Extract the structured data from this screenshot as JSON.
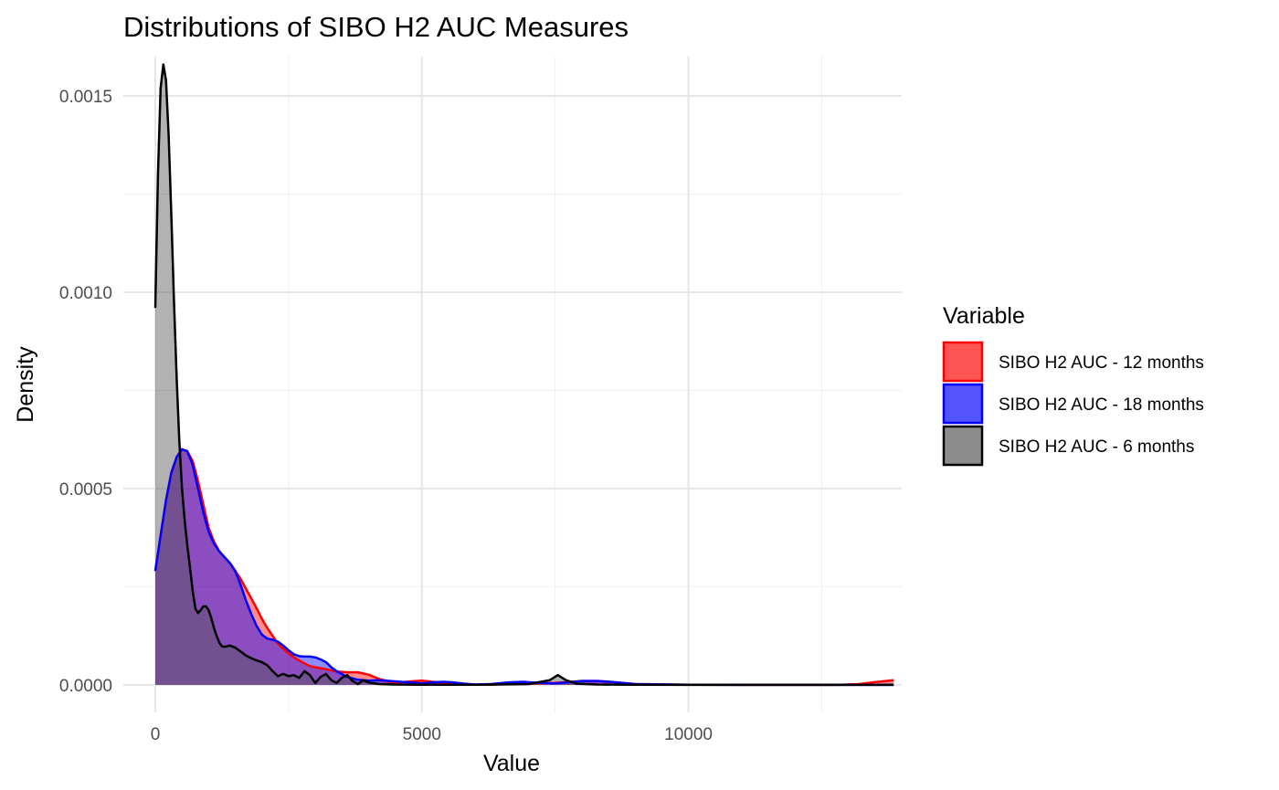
{
  "chart_data": {
    "type": "area",
    "subtype": "density",
    "title": "Distributions of SIBO H2 AUC Measures",
    "xlabel": "Value",
    "ylabel": "Density",
    "xlim": [
      -600,
      14000
    ],
    "ylim": [
      -7e-05,
      0.0016
    ],
    "xticks": [
      0,
      5000,
      10000
    ],
    "xtick_labels": [
      "0",
      "5000",
      "10000"
    ],
    "yticks": [
      0,
      0.0005,
      0.001,
      0.0015
    ],
    "ytick_labels": [
      "0.0000",
      "0.0005",
      "0.0010",
      "0.0015"
    ],
    "x_minor": [
      2500,
      7500,
      12500
    ],
    "y_minor": [
      0.00025,
      0.00075,
      0.00125
    ],
    "grid": true,
    "legend": {
      "title": "Variable",
      "placement": "right"
    },
    "series": [
      {
        "name": "SIBO H2 AUC - 12 months",
        "color": "#ff0000",
        "fill": "#ff0000",
        "points": [
          [
            0,
            0.00029
          ],
          [
            100,
            0.00038
          ],
          [
            200,
            0.00047
          ],
          [
            300,
            0.00054
          ],
          [
            400,
            0.00058
          ],
          [
            500,
            0.0006
          ],
          [
            600,
            0.000595
          ],
          [
            700,
            0.00057
          ],
          [
            800,
            0.00052
          ],
          [
            900,
            0.00046
          ],
          [
            1000,
            0.0004
          ],
          [
            1100,
            0.000365
          ],
          [
            1200,
            0.00034
          ],
          [
            1300,
            0.000325
          ],
          [
            1400,
            0.00031
          ],
          [
            1500,
            0.00029
          ],
          [
            1600,
            0.00027
          ],
          [
            1700,
            0.000245
          ],
          [
            1800,
            0.00022
          ],
          [
            1900,
            0.000195
          ],
          [
            2000,
            0.000168
          ],
          [
            2100,
            0.000145
          ],
          [
            2200,
            0.000125
          ],
          [
            2300,
            0.000105
          ],
          [
            2400,
            9.2e-05
          ],
          [
            2500,
            8e-05
          ],
          [
            2600,
            7e-05
          ],
          [
            2700,
            6.2e-05
          ],
          [
            2800,
            5.5e-05
          ],
          [
            2900,
            4.8e-05
          ],
          [
            3000,
            4.5e-05
          ],
          [
            3200,
            4e-05
          ],
          [
            3400,
            3.4e-05
          ],
          [
            3600,
            3.2e-05
          ],
          [
            3800,
            3.2e-05
          ],
          [
            4000,
            2.6e-05
          ],
          [
            4200,
            1.5e-05
          ],
          [
            4400,
            8e-06
          ],
          [
            4600,
            6e-06
          ],
          [
            4800,
            9e-06
          ],
          [
            5000,
            1.1e-05
          ],
          [
            5200,
            8e-06
          ],
          [
            5400,
            6e-06
          ],
          [
            5600,
            4e-06
          ],
          [
            5800,
            2e-06
          ],
          [
            6000,
            1e-06
          ],
          [
            6300,
            5e-07
          ],
          [
            6600,
            2e-06
          ],
          [
            6900,
            4e-06
          ],
          [
            7200,
            4e-06
          ],
          [
            7500,
            5e-06
          ],
          [
            7800,
            8e-06
          ],
          [
            8000,
            1e-05
          ],
          [
            8300,
            1e-05
          ],
          [
            8600,
            7e-06
          ],
          [
            9000,
            2e-06
          ],
          [
            10000,
            5e-07
          ],
          [
            11000,
            0
          ],
          [
            12000,
            0
          ],
          [
            12800,
            0
          ],
          [
            13200,
            2e-06
          ],
          [
            13500,
            7e-06
          ],
          [
            13850,
            1.2e-05
          ]
        ]
      },
      {
        "name": "SIBO H2 AUC - 18 months",
        "color": "#0000ff",
        "fill": "#0000ff",
        "points": [
          [
            0,
            0.00029
          ],
          [
            100,
            0.00038
          ],
          [
            200,
            0.00047
          ],
          [
            300,
            0.00054
          ],
          [
            400,
            0.00058
          ],
          [
            500,
            0.0006
          ],
          [
            600,
            0.000595
          ],
          [
            700,
            0.00056
          ],
          [
            800,
            0.0005
          ],
          [
            900,
            0.00044
          ],
          [
            1000,
            0.00039
          ],
          [
            1100,
            0.00036
          ],
          [
            1200,
            0.00034
          ],
          [
            1300,
            0.000325
          ],
          [
            1400,
            0.00031
          ],
          [
            1500,
            0.00029
          ],
          [
            1600,
            0.000255
          ],
          [
            1700,
            0.000215
          ],
          [
            1800,
            0.00018
          ],
          [
            1900,
            0.00015
          ],
          [
            2000,
            0.000128
          ],
          [
            2100,
            0.000118
          ],
          [
            2200,
            0.000115
          ],
          [
            2300,
            0.00011
          ],
          [
            2400,
            0.0001
          ],
          [
            2500,
            8.8e-05
          ],
          [
            2600,
            7.8e-05
          ],
          [
            2700,
            7.3e-05
          ],
          [
            2800,
            7.2e-05
          ],
          [
            2900,
            7.2e-05
          ],
          [
            3000,
            7e-05
          ],
          [
            3100,
            6.5e-05
          ],
          [
            3200,
            5.8e-05
          ],
          [
            3300,
            4.5e-05
          ],
          [
            3400,
            3.5e-05
          ],
          [
            3600,
            2e-05
          ],
          [
            3800,
            1.3e-05
          ],
          [
            4000,
            1.1e-05
          ],
          [
            4200,
            1.2e-05
          ],
          [
            4400,
            1e-05
          ],
          [
            4600,
            8e-06
          ],
          [
            4800,
            6e-06
          ],
          [
            5000,
            4e-06
          ],
          [
            5200,
            6e-06
          ],
          [
            5400,
            8e-06
          ],
          [
            5600,
            6e-06
          ],
          [
            5800,
            3e-06
          ],
          [
            6000,
            1e-06
          ],
          [
            6300,
            2e-06
          ],
          [
            6600,
            6e-06
          ],
          [
            6900,
            8e-06
          ],
          [
            7200,
            5e-06
          ],
          [
            7500,
            4e-06
          ],
          [
            7800,
            7e-06
          ],
          [
            8000,
            1e-05
          ],
          [
            8300,
            1e-05
          ],
          [
            8600,
            7e-06
          ],
          [
            9000,
            2e-06
          ],
          [
            10000,
            5e-07
          ],
          [
            11000,
            0
          ],
          [
            12000,
            0
          ],
          [
            13000,
            0
          ],
          [
            13850,
            0
          ]
        ]
      },
      {
        "name": "SIBO H2 AUC - 6 months",
        "color": "#000000",
        "fill": "#555555",
        "points": [
          [
            0,
            0.00096
          ],
          [
            50,
            0.0013
          ],
          [
            100,
            0.00152
          ],
          [
            150,
            0.00158
          ],
          [
            200,
            0.00154
          ],
          [
            250,
            0.0014
          ],
          [
            300,
            0.0012
          ],
          [
            350,
            0.00098
          ],
          [
            400,
            0.00078
          ],
          [
            450,
            0.00062
          ],
          [
            500,
            0.0005
          ],
          [
            550,
            0.00042
          ],
          [
            600,
            0.000355
          ],
          [
            650,
            0.0003
          ],
          [
            700,
            0.00024
          ],
          [
            750,
            0.000195
          ],
          [
            800,
            0.000183
          ],
          [
            850,
            0.00019
          ],
          [
            900,
            0.0002
          ],
          [
            950,
            0.0002
          ],
          [
            1000,
            0.00019
          ],
          [
            1050,
            0.00017
          ],
          [
            1100,
            0.000145
          ],
          [
            1150,
            0.000125
          ],
          [
            1200,
            0.000108
          ],
          [
            1250,
            9.8e-05
          ],
          [
            1300,
            9.7e-05
          ],
          [
            1400,
            0.0001
          ],
          [
            1500,
            9.5e-05
          ],
          [
            1600,
            8.5e-05
          ],
          [
            1700,
            7.5e-05
          ],
          [
            1800,
            6.8e-05
          ],
          [
            1900,
            6.2e-05
          ],
          [
            2000,
            5.8e-05
          ],
          [
            2100,
            5e-05
          ],
          [
            2200,
            3.5e-05
          ],
          [
            2300,
            2.2e-05
          ],
          [
            2400,
            2.8e-05
          ],
          [
            2500,
            2.2e-05
          ],
          [
            2600,
            2.5e-05
          ],
          [
            2700,
            1.8e-05
          ],
          [
            2800,
            3.5e-05
          ],
          [
            2900,
            2.5e-05
          ],
          [
            3000,
            5e-06
          ],
          [
            3100,
            2e-05
          ],
          [
            3200,
            2.8e-05
          ],
          [
            3300,
            1.2e-05
          ],
          [
            3400,
            5e-06
          ],
          [
            3500,
            1.8e-05
          ],
          [
            3600,
            2.5e-05
          ],
          [
            3700,
            1e-05
          ],
          [
            3800,
            2e-06
          ],
          [
            3900,
            1.2e-05
          ],
          [
            4000,
            6e-06
          ],
          [
            4200,
            2e-06
          ],
          [
            4500,
            1e-06
          ],
          [
            5000,
            5e-07
          ],
          [
            6000,
            5e-07
          ],
          [
            7000,
            2e-06
          ],
          [
            7400,
            1.2e-05
          ],
          [
            7550,
            2.5e-05
          ],
          [
            7700,
            1.2e-05
          ],
          [
            7900,
            3e-06
          ],
          [
            8300,
            1e-06
          ],
          [
            9000,
            5e-07
          ],
          [
            10000,
            0
          ],
          [
            11000,
            0
          ],
          [
            12000,
            0
          ],
          [
            13850,
            0
          ]
        ]
      }
    ]
  }
}
